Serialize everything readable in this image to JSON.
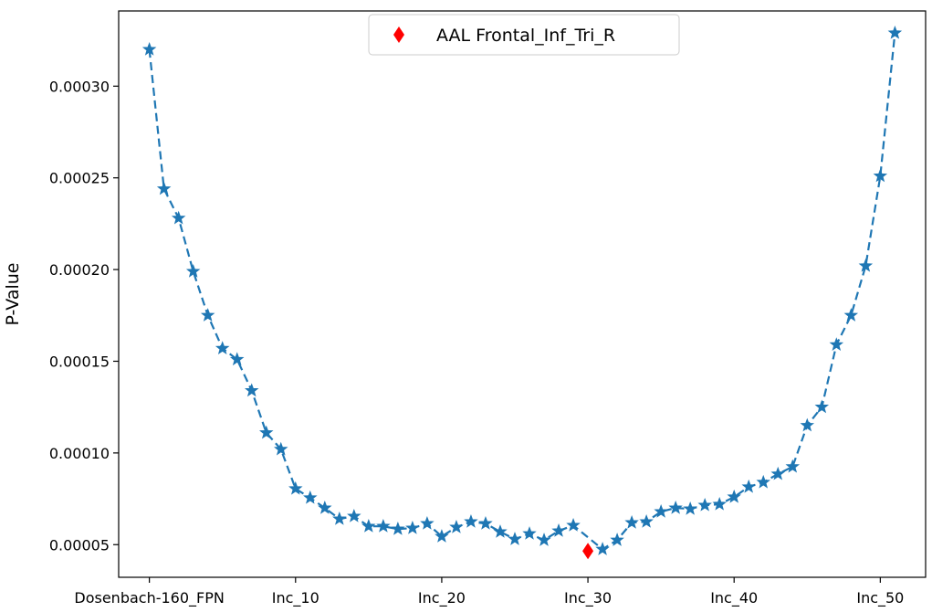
{
  "chart_data": {
    "type": "line",
    "title": "",
    "xlabel": "",
    "ylabel": "P-Value",
    "x_ticks": [
      {
        "index": 0,
        "label": "Dosenbach-160_FPN"
      },
      {
        "index": 10,
        "label": "Inc_10"
      },
      {
        "index": 20,
        "label": "Inc_20"
      },
      {
        "index": 30,
        "label": "Inc_30"
      },
      {
        "index": 40,
        "label": "Inc_40"
      },
      {
        "index": 50,
        "label": "Inc_50"
      }
    ],
    "y_ticks": [
      {
        "value": 5e-05,
        "label": "0.00005"
      },
      {
        "value": 0.0001,
        "label": "0.00010"
      },
      {
        "value": 0.00015,
        "label": "0.00015"
      },
      {
        "value": 0.0002,
        "label": "0.00020"
      },
      {
        "value": 0.00025,
        "label": "0.00025"
      },
      {
        "value": 0.0003,
        "label": "0.00030"
      }
    ],
    "xlim": [
      -2.1,
      53.1
    ],
    "ylim": [
      3.22e-05,
      0.000341
    ],
    "grid": false,
    "legend_position": "top-center",
    "series": [
      {
        "type": "line",
        "style": "dashed",
        "marker": "star",
        "color": "#1f77b4",
        "x": [
          0,
          1,
          2,
          3,
          4,
          5,
          6,
          7,
          8,
          9,
          10,
          11,
          12,
          13,
          14,
          15,
          16,
          17,
          18,
          19,
          20,
          21,
          22,
          23,
          24,
          25,
          26,
          27,
          28,
          29,
          31,
          32,
          33,
          34,
          35,
          36,
          37,
          38,
          39,
          40,
          41,
          42,
          43,
          44,
          45,
          46,
          47,
          48,
          49,
          50,
          51
        ],
        "values": [
          0.00032,
          0.000244,
          0.000228,
          0.000199,
          0.000175,
          0.000157,
          0.000151,
          0.000134,
          0.000111,
          0.000102,
          8.05e-05,
          7.55e-05,
          7e-05,
          6.4e-05,
          6.55e-05,
          6e-05,
          6e-05,
          5.85e-05,
          5.9e-05,
          6.15e-05,
          5.45e-05,
          5.95e-05,
          6.25e-05,
          6.15e-05,
          5.7e-05,
          5.3e-05,
          5.6e-05,
          5.25e-05,
          5.75e-05,
          6.05e-05,
          4.75e-05,
          5.25e-05,
          6.2e-05,
          6.25e-05,
          6.8e-05,
          7e-05,
          6.95e-05,
          7.15e-05,
          7.2e-05,
          7.6e-05,
          8.15e-05,
          8.4e-05,
          8.85e-05,
          9.25e-05,
          0.000115,
          0.000125,
          0.000159,
          0.000175,
          0.000202,
          0.000251,
          0.000329
        ]
      },
      {
        "name": "AAL Frontal_Inf_Tri_R",
        "type": "scatter",
        "marker": "diamond",
        "color": "#ff0000",
        "x": [
          30
        ],
        "values": [
          4.65e-05
        ]
      }
    ]
  }
}
